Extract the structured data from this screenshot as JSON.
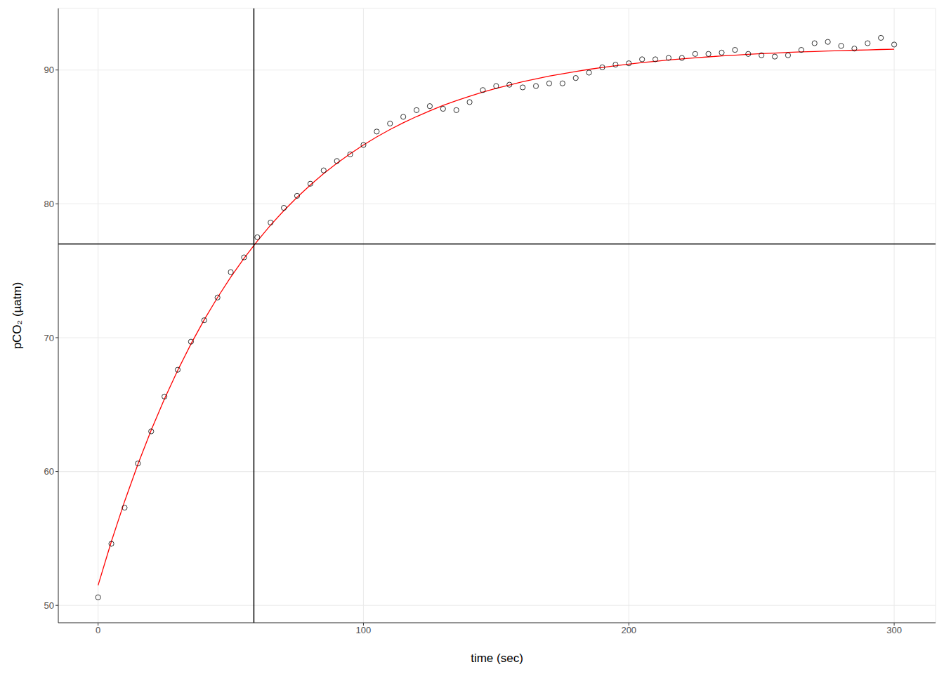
{
  "chart_data": {
    "type": "scatter",
    "x_label": "time (sec)",
    "y_label": "pCO₂ (µatm)",
    "x": [
      0,
      5,
      10,
      15,
      20,
      25,
      30,
      35,
      40,
      45,
      50,
      55,
      60,
      65,
      70,
      75,
      80,
      85,
      90,
      95,
      100,
      105,
      110,
      115,
      120,
      125,
      130,
      135,
      140,
      145,
      150,
      155,
      160,
      165,
      170,
      175,
      180,
      185,
      190,
      195,
      200,
      205,
      210,
      215,
      220,
      225,
      230,
      235,
      240,
      245,
      250,
      255,
      260,
      265,
      270,
      275,
      280,
      285,
      290,
      295,
      300
    ],
    "series": [
      {
        "type": "scatter",
        "marker": "circle",
        "color": "#000000",
        "values": [
          50.6,
          54.6,
          57.3,
          60.6,
          63.0,
          65.6,
          67.6,
          69.7,
          71.3,
          73.0,
          74.9,
          76.0,
          77.5,
          78.6,
          79.7,
          80.6,
          81.5,
          82.5,
          83.2,
          83.7,
          84.4,
          85.4,
          86.0,
          86.5,
          87.0,
          87.3,
          87.1,
          87.0,
          87.6,
          88.5,
          88.8,
          88.9,
          88.7,
          88.8,
          89.0,
          89.0,
          89.4,
          89.8,
          90.2,
          90.4,
          90.5,
          90.8,
          90.8,
          90.9,
          90.9,
          91.2,
          91.2,
          91.3,
          91.5,
          91.2,
          91.1,
          91.0,
          91.1,
          91.5,
          92.0,
          92.1,
          91.8,
          91.6,
          92.0,
          92.4,
          91.9
        ]
      },
      {
        "type": "line",
        "color": "#ff0000",
        "values": [
          51.5,
          54.77,
          57.78,
          60.54,
          63.09,
          65.42,
          67.56,
          69.53,
          71.34,
          73.0,
          74.53,
          75.93,
          77.22,
          78.41,
          79.49,
          80.49,
          81.41,
          82.26,
          83.03,
          83.74,
          84.4,
          85.0,
          85.55,
          86.06,
          86.52,
          86.95,
          87.35,
          87.71,
          88.04,
          88.35,
          88.63,
          88.88,
          89.12,
          89.34,
          89.54,
          89.72,
          89.89,
          90.05,
          90.19,
          90.32,
          90.44,
          90.55,
          90.65,
          90.75,
          90.83,
          90.91,
          90.98,
          91.05,
          91.11,
          91.17,
          91.22,
          91.26,
          91.31,
          91.35,
          91.38,
          91.42,
          91.45,
          91.48,
          91.5,
          91.53,
          91.55
        ]
      }
    ],
    "vline": 58.7,
    "hline": 77.0,
    "xlim": [
      -15,
      315.6
    ],
    "xticks": [
      0,
      100,
      200,
      300
    ],
    "ylim": [
      48.7,
      94.6
    ],
    "yticks": [
      50,
      60,
      70,
      80,
      90
    ],
    "grid": true
  }
}
